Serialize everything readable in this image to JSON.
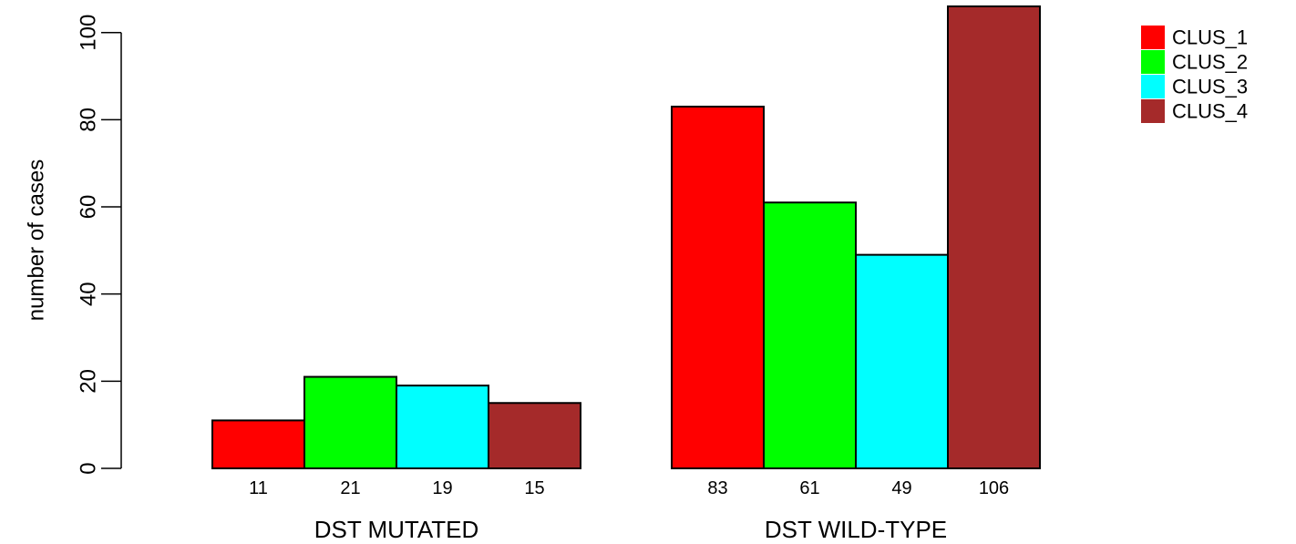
{
  "chart_data": {
    "type": "bar",
    "ylabel": "number of cases",
    "ylim": [
      0,
      106
    ],
    "yticks": [
      0,
      20,
      40,
      60,
      80,
      100
    ],
    "grid": false,
    "legend_position": "top-right",
    "categories": [
      "DST MUTATED",
      "DST WILD-TYPE"
    ],
    "series": [
      {
        "name": "CLUS_1",
        "color": "#ff0000",
        "values": [
          11,
          83
        ]
      },
      {
        "name": "CLUS_2",
        "color": "#00ff00",
        "values": [
          21,
          61
        ]
      },
      {
        "name": "CLUS_3",
        "color": "#00ffff",
        "values": [
          19,
          49
        ]
      },
      {
        "name": "CLUS_4",
        "color": "#a52a2a",
        "values": [
          15,
          106
        ]
      }
    ]
  }
}
